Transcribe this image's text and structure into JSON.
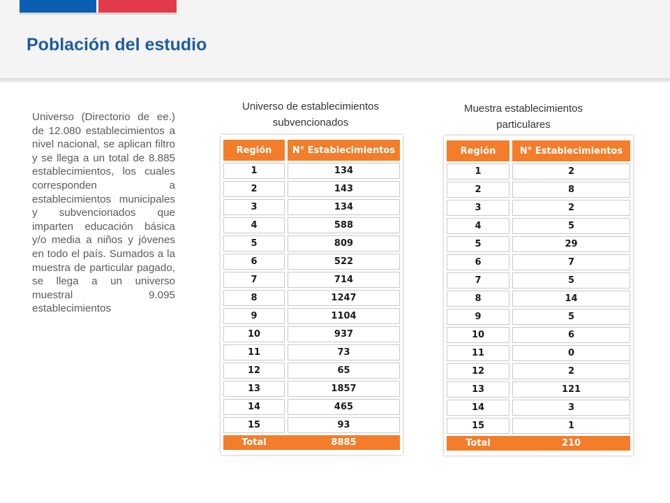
{
  "header": {
    "title": "Población del estudio",
    "colors": {
      "flag_blue": "#0b5fb3",
      "flag_red": "#e23a4a",
      "title": "#1f5c9e",
      "table_accent": "#f37d2a"
    }
  },
  "description": "Universo (Directorio de ee.) de 12.080 establecimientos a nivel nacional, se aplican filtro y se llega a un total de 8.885 establecimientos, los cuales corresponden a establecimientos municipales y subvencionados que imparten educación básica y/o media a niños y jóvenes en todo el país. Sumados a la muestra de particular pagado, se llega a un universo muestral 9.095 establecimientos",
  "tables": [
    {
      "caption_line1": "Universo de establecimientos",
      "caption_line2": "subvencionados",
      "columns": [
        "Región",
        "N° Establecimientos"
      ],
      "rows": [
        [
          "1",
          "134"
        ],
        [
          "2",
          "143"
        ],
        [
          "3",
          "134"
        ],
        [
          "4",
          "588"
        ],
        [
          "5",
          "809"
        ],
        [
          "6",
          "522"
        ],
        [
          "7",
          "714"
        ],
        [
          "8",
          "1247"
        ],
        [
          "9",
          "1104"
        ],
        [
          "10",
          "937"
        ],
        [
          "11",
          "73"
        ],
        [
          "12",
          "65"
        ],
        [
          "13",
          "1857"
        ],
        [
          "14",
          "465"
        ],
        [
          "15",
          "93"
        ]
      ],
      "total": [
        "Total",
        "8885"
      ]
    },
    {
      "caption_line1": "Muestra establecimientos",
      "caption_line2": "particulares",
      "columns": [
        "Región",
        "N° Establecimientos"
      ],
      "rows": [
        [
          "1",
          "2"
        ],
        [
          "2",
          "8"
        ],
        [
          "3",
          "2"
        ],
        [
          "4",
          "5"
        ],
        [
          "5",
          "29"
        ],
        [
          "6",
          "7"
        ],
        [
          "7",
          "5"
        ],
        [
          "8",
          "14"
        ],
        [
          "9",
          "5"
        ],
        [
          "10",
          "6"
        ],
        [
          "11",
          "0"
        ],
        [
          "12",
          "2"
        ],
        [
          "13",
          "121"
        ],
        [
          "14",
          "3"
        ],
        [
          "15",
          "1"
        ]
      ],
      "total": [
        "Total",
        "210"
      ]
    }
  ]
}
